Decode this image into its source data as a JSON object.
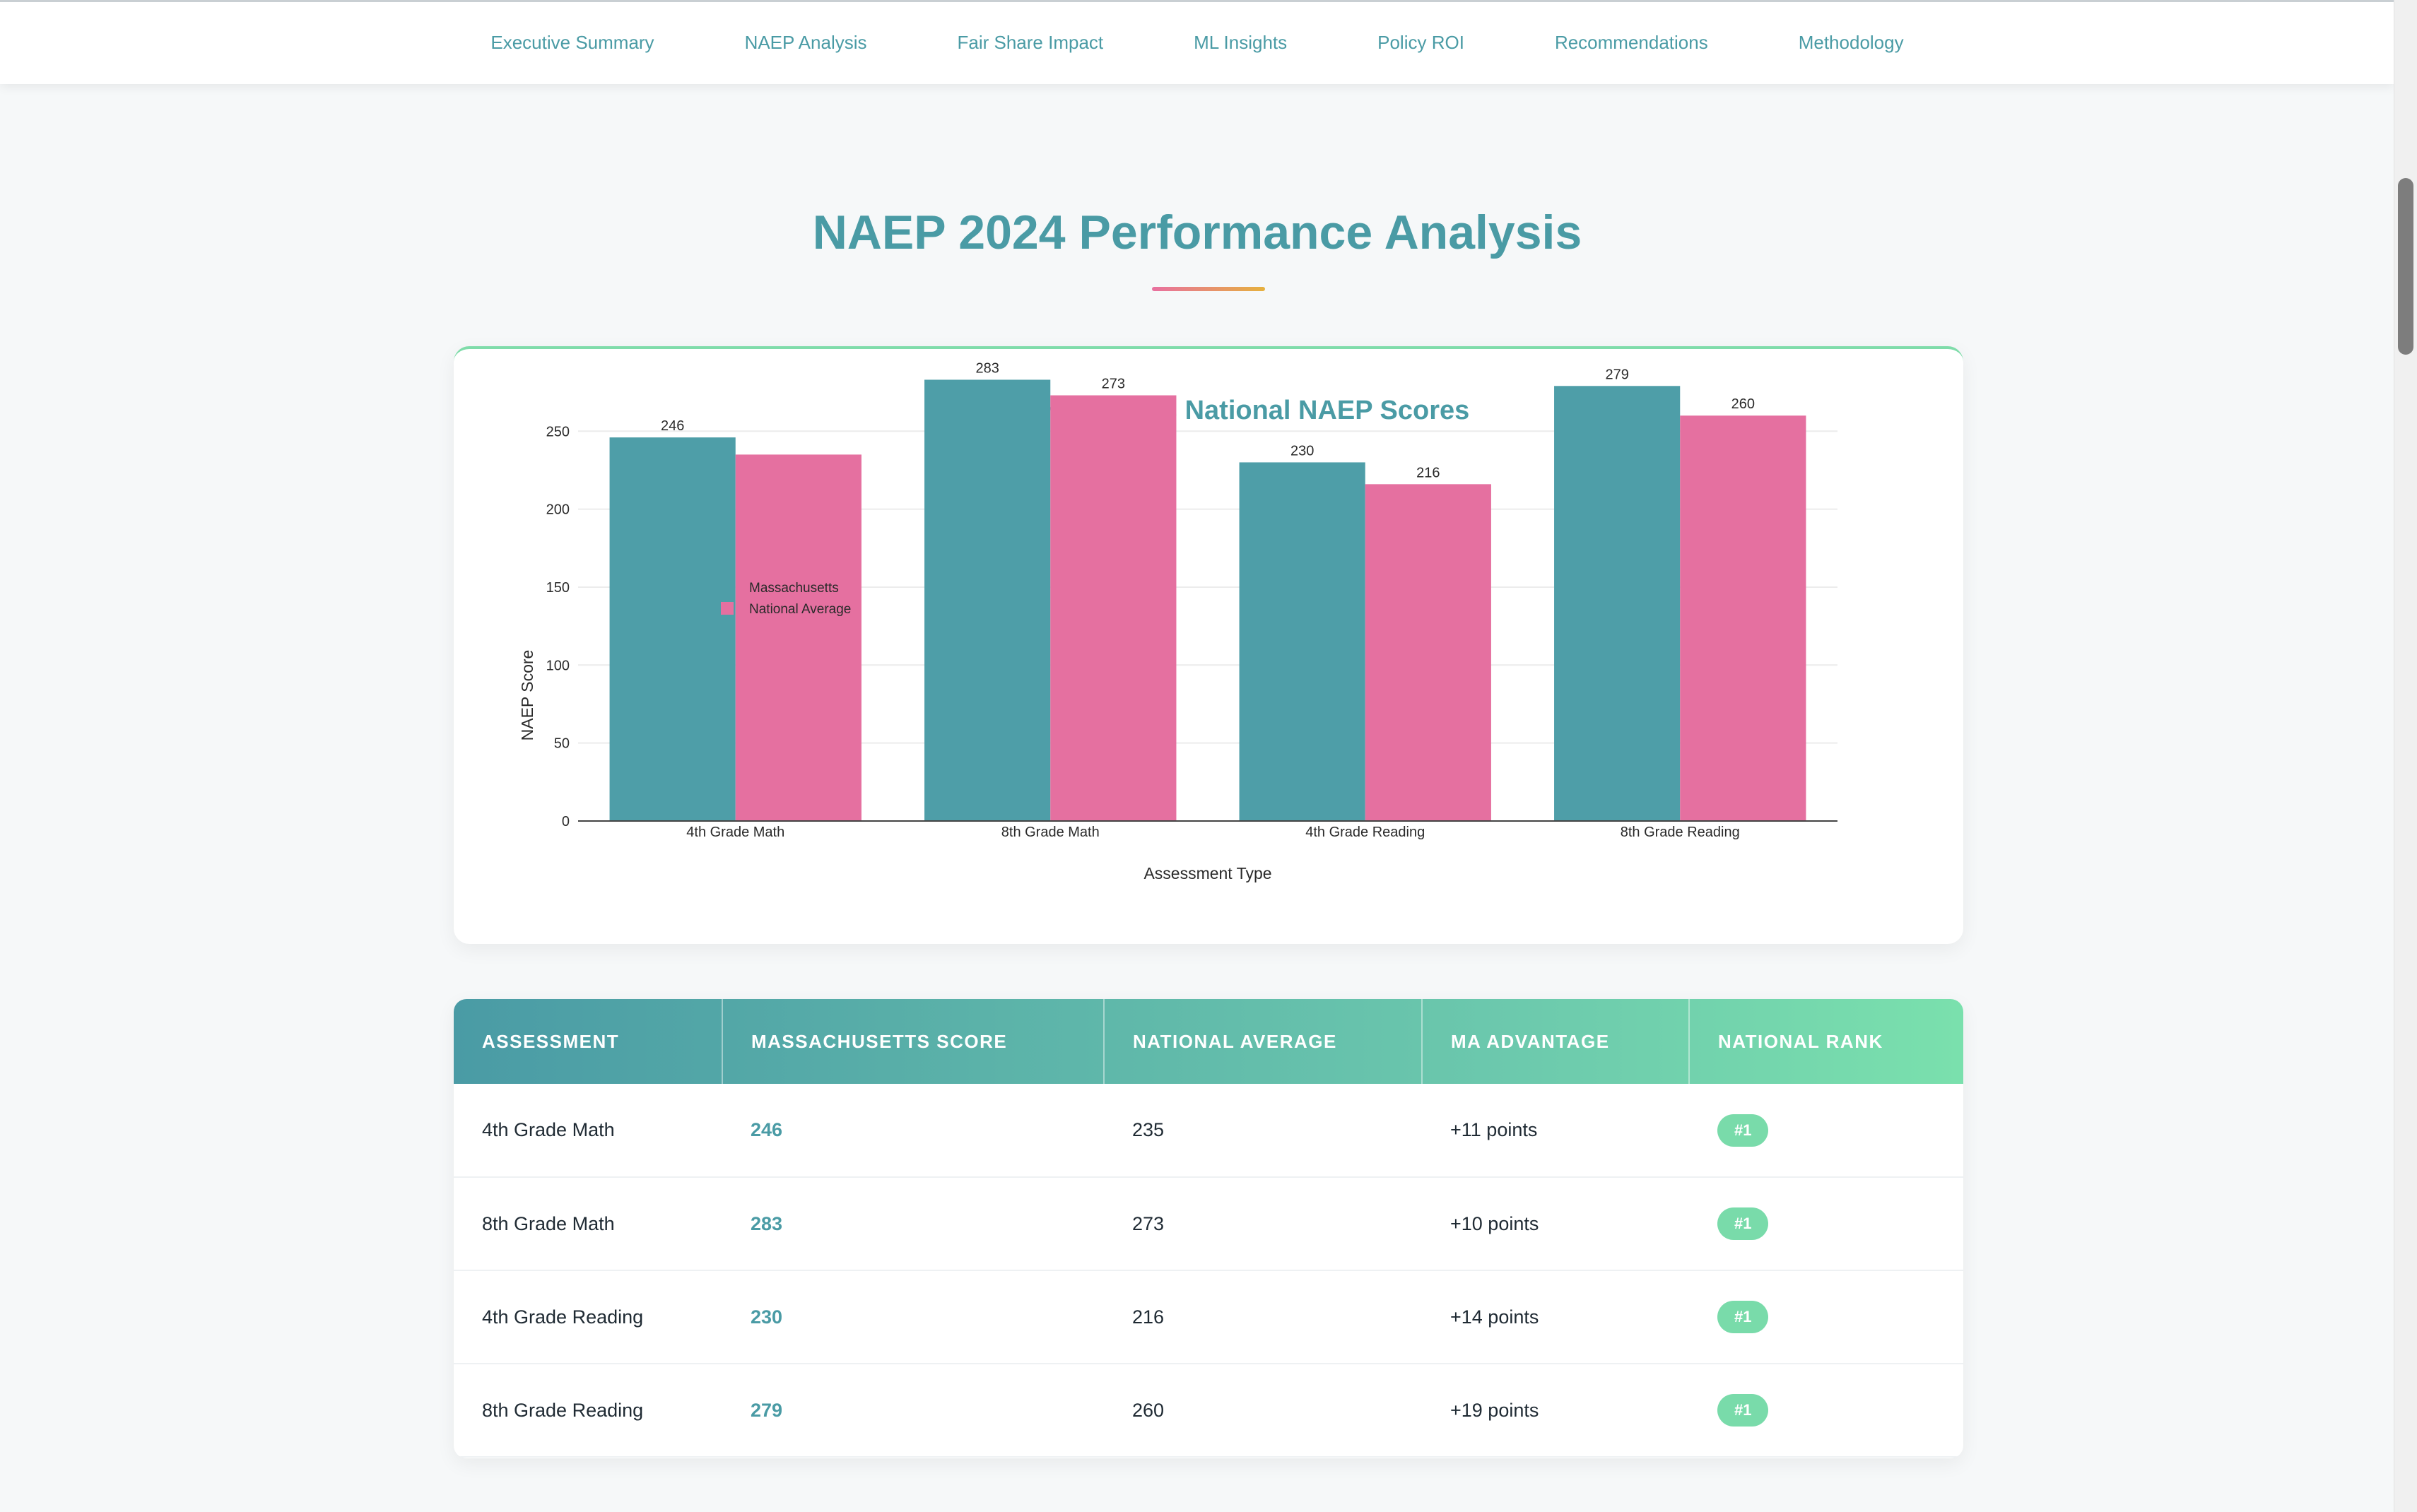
{
  "nav": {
    "items": [
      {
        "label": "Executive Summary"
      },
      {
        "label": "NAEP Analysis"
      },
      {
        "label": "Fair Share Impact"
      },
      {
        "label": "ML Insights"
      },
      {
        "label": "Policy ROI"
      },
      {
        "label": "Recommendations"
      },
      {
        "label": "Methodology"
      }
    ]
  },
  "section": {
    "title": "NAEP 2024 Performance Analysis"
  },
  "colors": {
    "accent": "#4a9ba5",
    "massachusetts": "#4e9ea8",
    "national": "#e570a0",
    "badge": "#79dbaa"
  },
  "chart_data": {
    "type": "bar",
    "title": "Massachusetts vs National NAEP Scores",
    "xlabel": "Assessment Type",
    "ylabel": "NAEP Score",
    "categories": [
      "4th Grade Math",
      "8th Grade Math",
      "4th Grade Reading",
      "8th Grade Reading"
    ],
    "series": [
      {
        "name": "Massachusetts",
        "values": [
          246,
          283,
          230,
          279
        ],
        "color": "#4e9ea8"
      },
      {
        "name": "National Average",
        "values": [
          235,
          273,
          216,
          260
        ],
        "color": "#e570a0"
      }
    ],
    "value_labels": {
      "Massachusetts": [
        "246",
        "283",
        "230",
        "279"
      ],
      "National Average": [
        "",
        "273",
        "216",
        "260"
      ]
    },
    "yticks": [
      0,
      50,
      100,
      150,
      200,
      250
    ],
    "ylim": [
      0,
      290
    ],
    "grid": true,
    "legend": "top-left"
  },
  "table": {
    "headers": [
      "ASSESSMENT",
      "MASSACHUSETTS SCORE",
      "NATIONAL AVERAGE",
      "MA ADVANTAGE",
      "NATIONAL RANK"
    ],
    "rows": [
      {
        "assessment": "4th Grade Math",
        "ma_score": "246",
        "national": "235",
        "advantage": "+11 points",
        "rank": "#1"
      },
      {
        "assessment": "8th Grade Math",
        "ma_score": "283",
        "national": "273",
        "advantage": "+10 points",
        "rank": "#1"
      },
      {
        "assessment": "4th Grade Reading",
        "ma_score": "230",
        "national": "216",
        "advantage": "+14 points",
        "rank": "#1"
      },
      {
        "assessment": "8th Grade Reading",
        "ma_score": "279",
        "national": "260",
        "advantage": "+19 points",
        "rank": "#1"
      }
    ]
  }
}
